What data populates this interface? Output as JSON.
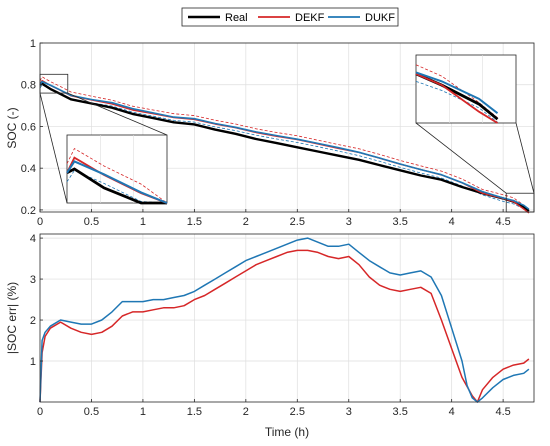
{
  "colors": {
    "real": "#000000",
    "dekf": "#d62728",
    "dukf": "#1f77b4",
    "grid": "#dedede",
    "axis": "#262626"
  },
  "chart_data": [
    {
      "type": "line",
      "ylabel": "SOC (-)",
      "xlabel": "",
      "xlim": [
        0,
        4.8
      ],
      "ylim": [
        0.19,
        1.0
      ],
      "xticks": [
        0,
        0.5,
        1,
        1.5,
        2,
        2.5,
        3,
        3.5,
        4,
        4.5
      ],
      "xtick_labels": [
        "0",
        "0.5",
        "1",
        "1.5",
        "2",
        "2.5",
        "3",
        "3.5",
        "4",
        "4.5"
      ],
      "yticks": [
        0.2,
        0.4,
        0.6,
        0.8,
        1.0
      ],
      "ytick_labels": [
        "0.2",
        "0.4",
        "0.6",
        "0.8",
        "1"
      ],
      "grid": true,
      "legend_position": "top-center",
      "series": [
        {
          "name": "Real",
          "x": [
            0,
            0.02,
            0.1,
            0.2,
            0.3,
            0.5,
            0.7,
            0.9,
            1.1,
            1.3,
            1.5,
            1.7,
            1.9,
            2.1,
            2.3,
            2.5,
            2.7,
            2.9,
            3.1,
            3.3,
            3.5,
            3.7,
            3.9,
            4.1,
            4.3,
            4.5,
            4.6,
            4.7,
            4.75
          ],
          "y": [
            0.8,
            0.805,
            0.78,
            0.755,
            0.73,
            0.71,
            0.69,
            0.66,
            0.64,
            0.62,
            0.61,
            0.585,
            0.565,
            0.54,
            0.52,
            0.5,
            0.48,
            0.46,
            0.44,
            0.415,
            0.39,
            0.365,
            0.345,
            0.31,
            0.28,
            0.255,
            0.24,
            0.215,
            0.195
          ]
        },
        {
          "name": "DEKF",
          "x": [
            0,
            0.02,
            0.1,
            0.2,
            0.3,
            0.5,
            0.7,
            0.9,
            1.1,
            1.3,
            1.5,
            1.7,
            1.9,
            2.1,
            2.3,
            2.5,
            2.7,
            2.9,
            3.1,
            3.3,
            3.5,
            3.7,
            3.9,
            4.1,
            4.3,
            4.5,
            4.6,
            4.7,
            4.75
          ],
          "y": [
            0.8,
            0.82,
            0.797,
            0.773,
            0.747,
            0.727,
            0.708,
            0.679,
            0.661,
            0.643,
            0.634,
            0.612,
            0.594,
            0.571,
            0.553,
            0.537,
            0.516,
            0.495,
            0.475,
            0.448,
            0.419,
            0.393,
            0.368,
            0.33,
            0.28,
            0.255,
            0.24,
            0.205,
            0.185
          ]
        },
        {
          "name": "DUKF",
          "x": [
            0,
            0.02,
            0.1,
            0.2,
            0.3,
            0.5,
            0.7,
            0.9,
            1.1,
            1.3,
            1.5,
            1.7,
            1.9,
            2.1,
            2.3,
            2.5,
            2.7,
            2.9,
            3.1,
            3.3,
            3.5,
            3.7,
            3.9,
            4.1,
            4.3,
            4.5,
            4.6,
            4.7,
            4.75
          ],
          "y": [
            0.8,
            0.815,
            0.798,
            0.774,
            0.749,
            0.729,
            0.714,
            0.685,
            0.665,
            0.645,
            0.637,
            0.614,
            0.596,
            0.574,
            0.556,
            0.539,
            0.519,
            0.498,
            0.476,
            0.449,
            0.42,
            0.393,
            0.369,
            0.331,
            0.288,
            0.257,
            0.245,
            0.222,
            0.203
          ]
        }
      ]
    },
    {
      "type": "line",
      "xlabel": "Time (h)",
      "ylabel": "|SOC err| (%)",
      "xlim": [
        0,
        4.8
      ],
      "ylim": [
        0,
        4.1
      ],
      "xticks": [
        0,
        0.5,
        1,
        1.5,
        2,
        2.5,
        3,
        3.5,
        4,
        4.5
      ],
      "xtick_labels": [
        "0",
        "0.5",
        "1",
        "1.5",
        "2",
        "2.5",
        "3",
        "3.5",
        "4",
        "4.5"
      ],
      "yticks": [
        1,
        2,
        3,
        4
      ],
      "ytick_labels": [
        "1",
        "2",
        "3",
        "4"
      ],
      "grid": true,
      "series": [
        {
          "name": "DEKF",
          "x": [
            0,
            0.02,
            0.05,
            0.1,
            0.2,
            0.3,
            0.4,
            0.5,
            0.6,
            0.7,
            0.8,
            0.9,
            1.0,
            1.1,
            1.2,
            1.3,
            1.4,
            1.5,
            1.6,
            1.7,
            1.8,
            1.9,
            2.0,
            2.1,
            2.2,
            2.3,
            2.4,
            2.5,
            2.6,
            2.7,
            2.8,
            2.9,
            3.0,
            3.1,
            3.2,
            3.3,
            3.4,
            3.5,
            3.6,
            3.7,
            3.8,
            3.9,
            4.0,
            4.1,
            4.2,
            4.25,
            4.3,
            4.4,
            4.5,
            4.6,
            4.7,
            4.75
          ],
          "y": [
            0.0,
            1.2,
            1.6,
            1.8,
            1.95,
            1.8,
            1.7,
            1.65,
            1.7,
            1.85,
            2.1,
            2.2,
            2.2,
            2.25,
            2.3,
            2.3,
            2.35,
            2.5,
            2.6,
            2.75,
            2.9,
            3.05,
            3.2,
            3.35,
            3.45,
            3.55,
            3.65,
            3.7,
            3.7,
            3.65,
            3.55,
            3.5,
            3.55,
            3.35,
            3.05,
            2.85,
            2.75,
            2.7,
            2.75,
            2.8,
            2.65,
            2.0,
            1.3,
            0.6,
            0.15,
            0.0,
            0.3,
            0.6,
            0.8,
            0.9,
            0.95,
            1.05
          ]
        },
        {
          "name": "DUKF",
          "x": [
            0,
            0.02,
            0.05,
            0.1,
            0.2,
            0.3,
            0.4,
            0.5,
            0.6,
            0.7,
            0.8,
            0.9,
            1.0,
            1.1,
            1.2,
            1.3,
            1.4,
            1.5,
            1.6,
            1.7,
            1.8,
            1.9,
            2.0,
            2.1,
            2.2,
            2.3,
            2.4,
            2.5,
            2.6,
            2.7,
            2.8,
            2.9,
            3.0,
            3.1,
            3.2,
            3.3,
            3.4,
            3.5,
            3.6,
            3.7,
            3.8,
            3.9,
            4.0,
            4.1,
            4.15,
            4.2,
            4.25,
            4.3,
            4.4,
            4.5,
            4.6,
            4.7,
            4.75
          ],
          "y": [
            0.0,
            1.5,
            1.7,
            1.85,
            2.0,
            1.95,
            1.9,
            1.9,
            2.0,
            2.2,
            2.45,
            2.45,
            2.45,
            2.5,
            2.5,
            2.55,
            2.6,
            2.7,
            2.85,
            3.0,
            3.15,
            3.3,
            3.45,
            3.55,
            3.65,
            3.75,
            3.85,
            3.95,
            4.0,
            3.9,
            3.8,
            3.8,
            3.85,
            3.65,
            3.45,
            3.3,
            3.15,
            3.1,
            3.15,
            3.2,
            3.05,
            2.6,
            1.8,
            1.0,
            0.4,
            0.1,
            0.0,
            0.1,
            0.35,
            0.55,
            0.65,
            0.7,
            0.8
          ]
        }
      ]
    }
  ]
}
